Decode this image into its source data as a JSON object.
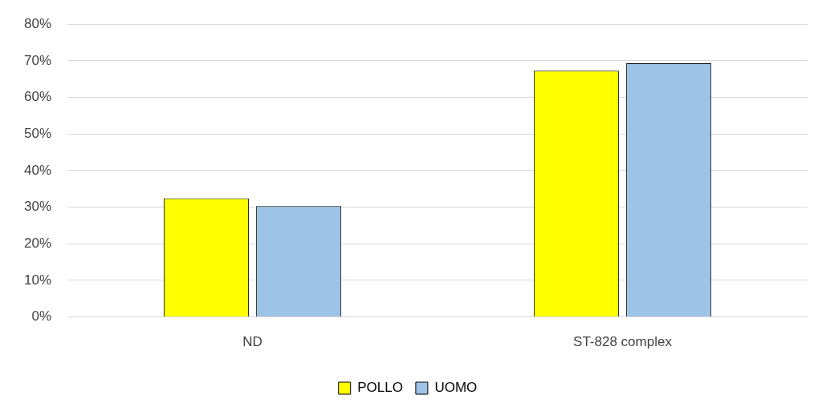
{
  "chart_data": {
    "type": "bar",
    "categories": [
      "ND",
      "ST-828 complex"
    ],
    "series": [
      {
        "name": "POLLO",
        "color": "#ffff00",
        "values": [
          32.4,
          67.3
        ]
      },
      {
        "name": "UOMO",
        "color": "#9dc3e6",
        "values": [
          30.3,
          69.3
        ]
      }
    ],
    "ylim": [
      0,
      80
    ],
    "yticks": [
      {
        "value": 0,
        "label": "0%"
      },
      {
        "value": 10,
        "label": "10%"
      },
      {
        "value": 20,
        "label": "20%"
      },
      {
        "value": 30,
        "label": "30%"
      },
      {
        "value": 40,
        "label": "40%"
      },
      {
        "value": 50,
        "label": "50%"
      },
      {
        "value": 60,
        "label": "60%"
      },
      {
        "value": 70,
        "label": "70%"
      },
      {
        "value": 80,
        "label": "80%"
      }
    ],
    "grid": "y",
    "legend": "bottom"
  }
}
